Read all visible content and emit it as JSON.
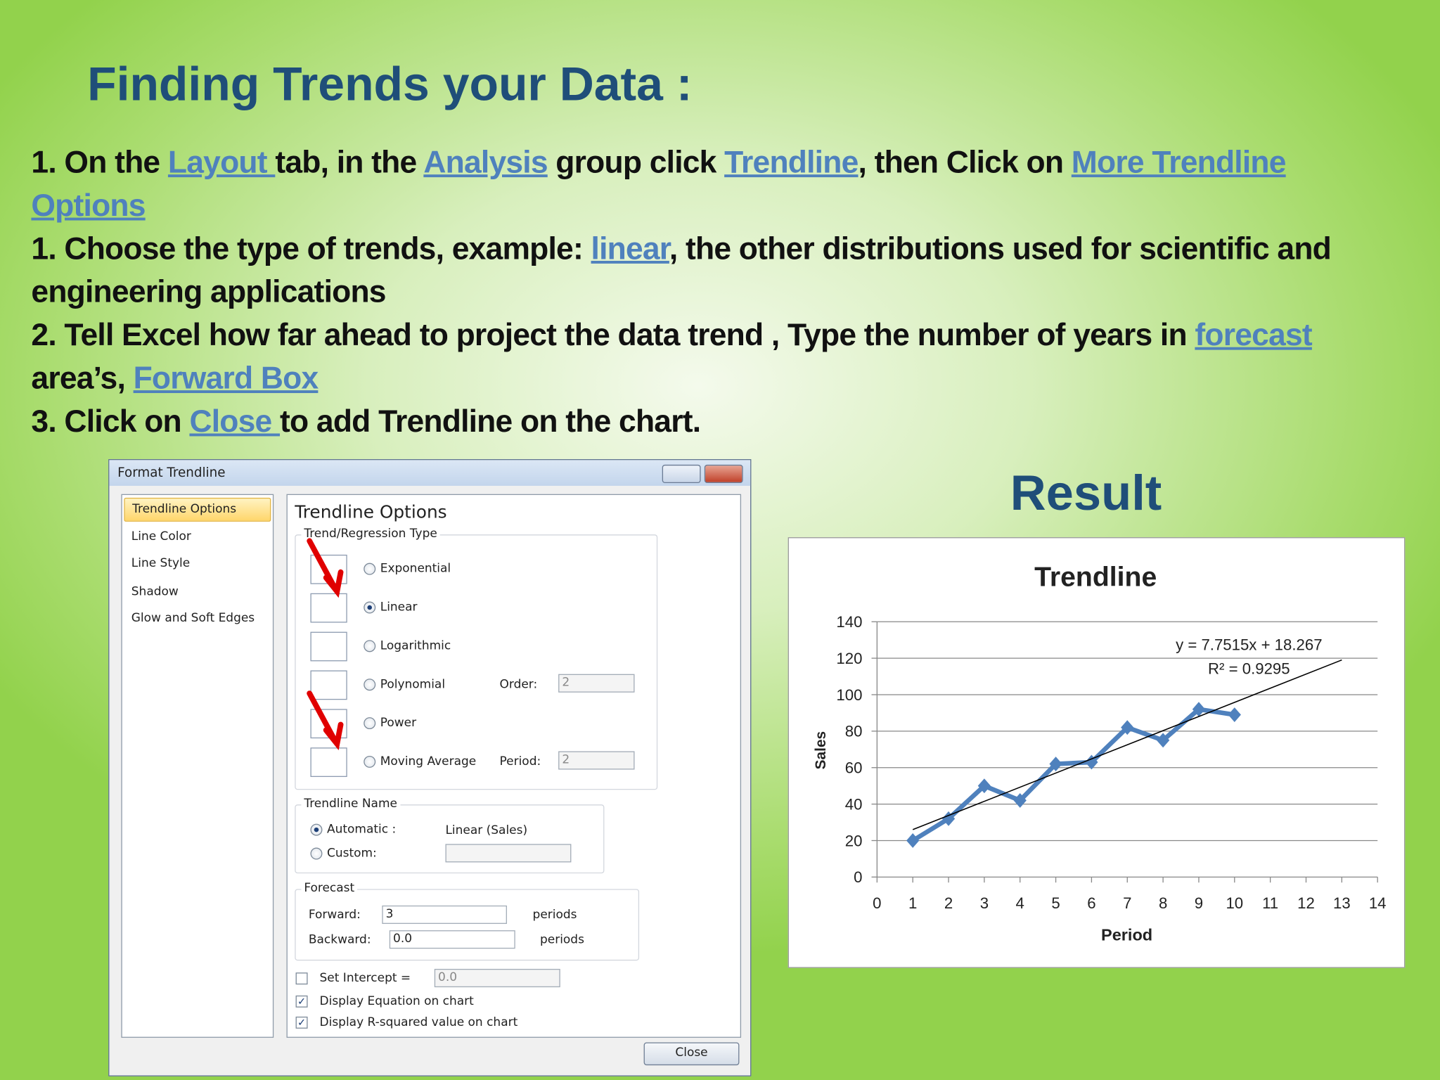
{
  "title": "Finding Trends your Data :",
  "instructions": [
    [
      {
        "text": "1. On the ",
        "link": false
      },
      {
        "text": "Layout ",
        "link": true
      },
      {
        "text": " tab, in the ",
        "link": false
      },
      {
        "text": "Analysis",
        "link": true
      },
      {
        "text": " group click ",
        "link": false
      },
      {
        "text": "Trendline",
        "link": true
      },
      {
        "text": ", then Click on ",
        "link": false
      },
      {
        "text": "More Trendline Options",
        "link": true
      }
    ],
    [
      {
        "text": "1. Choose the type of trends,  example: ",
        "link": false
      },
      {
        "text": "linear",
        "link": true
      },
      {
        "text": ", the other distributions used for scientific and engineering applications",
        "link": false
      }
    ],
    [
      {
        "text": "2. Tell Excel how far ahead to project the data trend , Type the number of years in ",
        "link": false
      },
      {
        "text": "forecast",
        "link": true
      },
      {
        "text": " area’s, ",
        "link": false
      },
      {
        "text": "Forward Box",
        "link": true
      }
    ],
    [
      {
        "text": "3. Click on ",
        "link": false
      },
      {
        "text": "Close ",
        "link": true
      },
      {
        "text": "to add Trendline on the chart.",
        "link": false
      }
    ]
  ],
  "dialog": {
    "title": "Format Trendline",
    "nav": [
      "Trendline Options",
      "Line Color",
      "Line Style",
      "Shadow",
      "Glow and Soft Edges"
    ],
    "heading": "Trendline Options",
    "type_group": "Trend/Regression Type",
    "types": [
      {
        "label": "Exponential",
        "checked": false
      },
      {
        "label": "Linear",
        "checked": true
      },
      {
        "label": "Logarithmic",
        "checked": false
      },
      {
        "label": "Polynomial",
        "checked": false
      },
      {
        "label": "Power",
        "checked": false
      },
      {
        "label": "Moving Average",
        "checked": false
      }
    ],
    "order_label": "Order:",
    "order_value": "2",
    "period_label": "Period:",
    "period_value": "2",
    "name_group": "Trendline Name",
    "automatic": "Automatic :",
    "automatic_checked": true,
    "automatic_value": "Linear (Sales)",
    "custom": "Custom:",
    "forecast_group": "Forecast",
    "forward": "Forward:",
    "forward_value": "3",
    "forward_unit": "periods",
    "backward": "Backward:",
    "backward_value": "0.0",
    "backward_unit": "periods",
    "intercept": {
      "label": "Set Intercept =",
      "checked": false,
      "value": "0.0"
    },
    "display_equation": {
      "label": "Display Equation on chart",
      "checked": true
    },
    "display_r2": {
      "label": "Display R-squared value on chart",
      "checked": true
    },
    "close": "Close"
  },
  "result": "Result",
  "chart_data": {
    "type": "line",
    "title": "Trendline",
    "x_label": "Period",
    "x": [
      1,
      2,
      3,
      4,
      5,
      6,
      7,
      8,
      9,
      10
    ],
    "series": [
      {
        "name": "Sales",
        "color": "#4f81bd",
        "values": [
          20,
          32,
          50,
          42,
          62,
          63,
          82,
          75,
          92,
          89
        ]
      }
    ],
    "trendline": {
      "equation": "y = 7.7515x + 18.267",
      "r2_label": "R² = 0.9295",
      "slope": 7.7515,
      "intercept": 18.267,
      "x_range": [
        1,
        13
      ],
      "color": "#000000"
    },
    "xlim": [
      0,
      14
    ],
    "xticks": [
      0,
      1,
      2,
      3,
      4,
      5,
      6,
      7,
      8,
      9,
      10,
      11,
      12,
      13,
      14
    ],
    "ylim": [
      0,
      140
    ],
    "yticks": [
      0,
      20,
      40,
      60,
      80,
      100,
      120,
      140
    ],
    "grid": true
  }
}
